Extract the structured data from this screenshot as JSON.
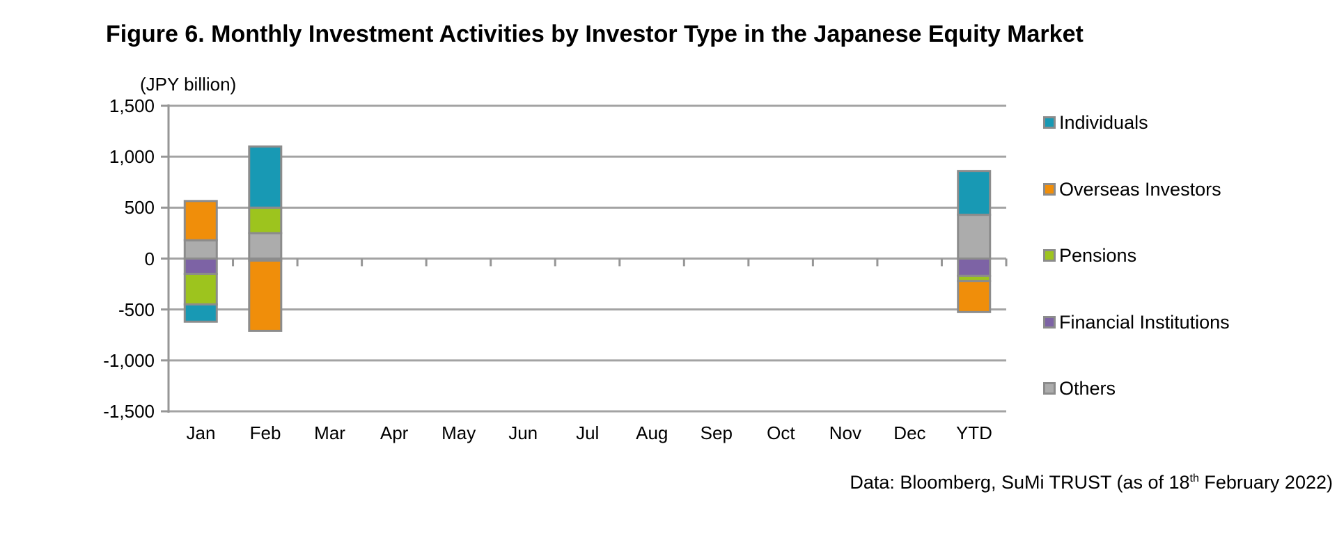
{
  "title": "Figure 6. Monthly Investment Activities by Investor Type in the Japanese Equity Market",
  "unit_label": "(JPY billion)",
  "footer": {
    "prefix": "Data: Bloomberg, SuMi TRUST (as of 18",
    "superscript": "th",
    "suffix": " February 2022)"
  },
  "chart_data": {
    "type": "bar",
    "stacked": true,
    "title": "Figure 6. Monthly Investment Activities by Investor Type in the Japanese Equity Market",
    "ylabel": "(JPY billion)",
    "categories": [
      "Jan",
      "Feb",
      "Mar",
      "Apr",
      "May",
      "Jun",
      "Jul",
      "Aug",
      "Sep",
      "Oct",
      "Nov",
      "Dec",
      "YTD"
    ],
    "series": [
      {
        "name": "Individuals",
        "color": "#1899B4",
        "values": [
          -170,
          600,
          null,
          null,
          null,
          null,
          null,
          null,
          null,
          null,
          null,
          null,
          430
        ]
      },
      {
        "name": "Overseas Investors",
        "color": "#F08E0A",
        "values": [
          385,
          -690,
          null,
          null,
          null,
          null,
          null,
          null,
          null,
          null,
          null,
          null,
          -305
        ]
      },
      {
        "name": "Pensions",
        "color": "#9DC41E",
        "values": [
          -300,
          250,
          null,
          null,
          null,
          null,
          null,
          null,
          null,
          null,
          null,
          null,
          -50
        ]
      },
      {
        "name": "Financial Institutions",
        "color": "#7D63A5",
        "values": [
          -150,
          -20,
          null,
          null,
          null,
          null,
          null,
          null,
          null,
          null,
          null,
          null,
          -170
        ]
      },
      {
        "name": "Others",
        "color": "#ACACAC",
        "values": [
          180,
          250,
          null,
          null,
          null,
          null,
          null,
          null,
          null,
          null,
          null,
          null,
          430
        ]
      }
    ],
    "stack_order_from_axis": [
      "Others",
      "Financial Institutions",
      "Pensions",
      "Overseas Investors",
      "Individuals"
    ],
    "ylim": [
      -1500,
      1500
    ],
    "ytick_step": 500,
    "grid": true,
    "legend_position": "right",
    "colors": {
      "gridline": "#A3A3A3",
      "axis": "#969696",
      "bar_border": "#8C8C8C"
    }
  }
}
